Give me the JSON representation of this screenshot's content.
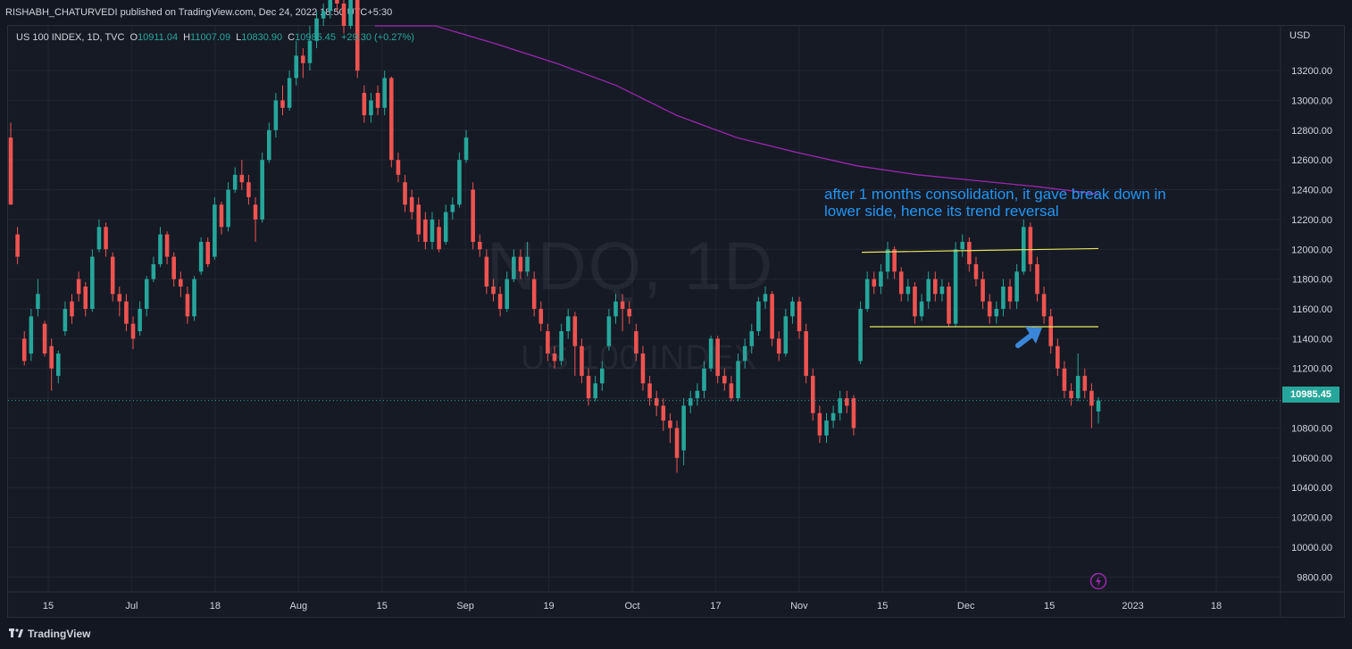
{
  "header": {
    "published_text": "RISHABH_CHATURVEDI published on TradingView.com, Dec 24, 2022 18:50 UTC+5:30"
  },
  "legend": {
    "symbol": "US 100 INDEX, 1D, TVC",
    "open_label": "O",
    "open": "10911.04",
    "high_label": "H",
    "high": "11007.09",
    "low_label": "L",
    "low": "10830.90",
    "close_label": "C",
    "close": "10985.45",
    "change": "+29.30 (+0.27%)"
  },
  "watermark": {
    "symbol": "NDQ, 1D",
    "name": "US 100 INDEX"
  },
  "annotation": {
    "text": "after 1 months consolidation, it gave break down in lower side, hence its trend reversal"
  },
  "price_axis": {
    "currency": "USD",
    "last_price": "10985.45"
  },
  "footer": {
    "brand": "TradingView"
  },
  "colors": {
    "up": "#26a69a",
    "down": "#ef5350",
    "ma": "#9c27b0",
    "level_line": "#e6e65c",
    "annotation": "#2196f3",
    "background": "#161a25"
  },
  "icons": [
    "arrow-icon",
    "flash-icon",
    "tradingview-logo-icon"
  ],
  "chart_data": {
    "type": "candlestick",
    "y_range": [
      9700,
      13500
    ],
    "y_ticks": [
      "13200.00",
      "13000.00",
      "12800.00",
      "12600.00",
      "12400.00",
      "12200.00",
      "12000.00",
      "11800.00",
      "11600.00",
      "11400.00",
      "11200.00",
      "11000.00",
      "10800.00",
      "10600.00",
      "10400.00",
      "10200.00",
      "10000.00",
      "9800.00"
    ],
    "x_ticks": [
      "15",
      "Jul",
      "18",
      "Aug",
      "15",
      "Sep",
      "19",
      "Oct",
      "17",
      "Nov",
      "15",
      "Dec",
      "15",
      "2023",
      "18"
    ],
    "resistance_line": [
      11980,
      12005
    ],
    "support_line": [
      11480,
      11480
    ],
    "moving_average": [
      13700,
      13520,
      13380,
      13250,
      13100,
      12900,
      12750,
      12650,
      12560,
      12500,
      12460,
      12420,
      12370
    ],
    "candles": [
      [
        12750,
        12300,
        12850,
        12300
      ],
      [
        12100,
        11950,
        12150,
        11900
      ],
      [
        11400,
        11250,
        11450,
        11220
      ],
      [
        11300,
        11550,
        11600,
        11250
      ],
      [
        11600,
        11700,
        11800,
        11550
      ],
      [
        11500,
        11300,
        11520,
        11280
      ],
      [
        11350,
        11200,
        11400,
        11050
      ],
      [
        11150,
        11300,
        11320,
        11100
      ],
      [
        11450,
        11600,
        11650,
        11420
      ],
      [
        11650,
        11550,
        11700,
        11500
      ],
      [
        11800,
        11700,
        11850,
        11650
      ],
      [
        11750,
        11600,
        11780,
        11550
      ],
      [
        11600,
        11950,
        12000,
        11580
      ],
      [
        12000,
        12150,
        12200,
        11980
      ],
      [
        12150,
        12000,
        12180,
        11950
      ],
      [
        11950,
        11700,
        11980,
        11650
      ],
      [
        11700,
        11650,
        11750,
        11550
      ],
      [
        11650,
        11500,
        11700,
        11450
      ],
      [
        11500,
        11400,
        11550,
        11330
      ],
      [
        11450,
        11600,
        11650,
        11420
      ],
      [
        11600,
        11800,
        11820,
        11550
      ],
      [
        11800,
        11900,
        11950,
        11780
      ],
      [
        11900,
        12100,
        12150,
        11880
      ],
      [
        12100,
        11950,
        12120,
        11900
      ],
      [
        11950,
        11800,
        11980,
        11750
      ],
      [
        11800,
        11750,
        11850,
        11680
      ],
      [
        11700,
        11550,
        11750,
        11500
      ],
      [
        11550,
        11800,
        11820,
        11520
      ],
      [
        11850,
        12050,
        12080,
        11830
      ],
      [
        12050,
        11900,
        12080,
        11880
      ],
      [
        11950,
        12300,
        12350,
        11930
      ],
      [
        12300,
        12150,
        12320,
        12100
      ],
      [
        12150,
        12400,
        12450,
        12120
      ],
      [
        12400,
        12500,
        12550,
        12380
      ],
      [
        12500,
        12450,
        12600,
        12400
      ],
      [
        12450,
        12350,
        12500,
        12300
      ],
      [
        12300,
        12200,
        12350,
        12050
      ],
      [
        12200,
        12600,
        12650,
        12180
      ],
      [
        12600,
        12800,
        12850,
        12580
      ],
      [
        12800,
        13000,
        13050,
        12750
      ],
      [
        13000,
        12950,
        13100,
        12900
      ],
      [
        12950,
        13150,
        13200,
        12930
      ],
      [
        13150,
        13300,
        13400,
        13100
      ],
      [
        13300,
        13250,
        13350,
        13150
      ],
      [
        13250,
        13400,
        13500,
        13200
      ],
      [
        13400,
        13550,
        13600,
        13350
      ],
      [
        13550,
        13600,
        13650,
        13500
      ],
      [
        13600,
        13700,
        13750,
        13550
      ],
      [
        13700,
        13650,
        13800,
        13600
      ],
      [
        13650,
        13500,
        13700,
        13450
      ],
      [
        13500,
        13750,
        13800,
        13480
      ],
      [
        13750,
        13200,
        13800,
        13150
      ],
      [
        13050,
        12900,
        13100,
        12850
      ],
      [
        12900,
        13000,
        13050,
        12850
      ],
      [
        13050,
        12950,
        13100,
        12900
      ],
      [
        12950,
        13150,
        13200,
        12900
      ],
      [
        13150,
        12600,
        13160,
        12550
      ],
      [
        12600,
        12500,
        12650,
        12450
      ],
      [
        12450,
        12300,
        12500,
        12250
      ],
      [
        12350,
        12250,
        12400,
        12200
      ],
      [
        12300,
        12100,
        12350,
        12050
      ],
      [
        12200,
        12050,
        12250,
        12000
      ],
      [
        12050,
        12200,
        12250,
        12000
      ],
      [
        12150,
        12000,
        12200,
        11980
      ],
      [
        12050,
        12250,
        12300,
        12030
      ],
      [
        12250,
        12300,
        12350,
        12200
      ],
      [
        12300,
        12600,
        12650,
        12280
      ],
      [
        12600,
        12750,
        12800,
        12580
      ],
      [
        12400,
        12050,
        12450,
        12000
      ],
      [
        12050,
        12000,
        12100,
        11950
      ],
      [
        11950,
        11750,
        12000,
        11700
      ],
      [
        11750,
        11700,
        11800,
        11650
      ],
      [
        11700,
        11600,
        11750,
        11550
      ],
      [
        11600,
        11800,
        11850,
        11580
      ],
      [
        11800,
        11950,
        12000,
        11780
      ],
      [
        11950,
        11850,
        12000,
        11800
      ],
      [
        11850,
        11950,
        12050,
        11820
      ],
      [
        11800,
        11600,
        11850,
        11550
      ],
      [
        11600,
        11500,
        11650,
        11450
      ],
      [
        11450,
        11300,
        11500,
        11250
      ],
      [
        11300,
        11250,
        11350,
        11200
      ],
      [
        11250,
        11450,
        11500,
        11220
      ],
      [
        11450,
        11550,
        11600,
        11400
      ],
      [
        11550,
        11350,
        11580,
        11150
      ],
      [
        11350,
        11150,
        11400,
        11100
      ],
      [
        11150,
        11000,
        11200,
        10950
      ],
      [
        11000,
        11100,
        11150,
        10980
      ],
      [
        11100,
        11200,
        11250,
        11050
      ],
      [
        11350,
        11550,
        11600,
        11320
      ],
      [
        11550,
        11650,
        11700,
        11500
      ],
      [
        11650,
        11600,
        11700,
        11450
      ],
      [
        11600,
        11550,
        11650,
        11500
      ],
      [
        11450,
        11300,
        11500,
        11250
      ],
      [
        11300,
        11100,
        11350,
        11050
      ],
      [
        11100,
        11000,
        11150,
        10950
      ],
      [
        11000,
        10950,
        11050,
        10880
      ],
      [
        10950,
        10850,
        11000,
        10780
      ],
      [
        10850,
        10800,
        10900,
        10700
      ],
      [
        10800,
        10600,
        10850,
        10500
      ],
      [
        10650,
        10950,
        11000,
        10550
      ],
      [
        10950,
        11000,
        11050,
        10900
      ],
      [
        11000,
        11050,
        11100,
        10950
      ],
      [
        11050,
        11200,
        11250,
        11000
      ],
      [
        11200,
        11400,
        11420,
        11180
      ],
      [
        11400,
        11150,
        11420,
        11100
      ],
      [
        11150,
        11100,
        11200,
        11050
      ],
      [
        11100,
        11000,
        11150,
        10980
      ],
      [
        11000,
        11250,
        11300,
        10980
      ],
      [
        11250,
        11350,
        11400,
        11200
      ],
      [
        11350,
        11450,
        11500,
        11300
      ],
      [
        11450,
        11650,
        11680,
        11420
      ],
      [
        11650,
        11700,
        11750,
        11600
      ],
      [
        11700,
        11400,
        11720,
        11350
      ],
      [
        11400,
        11300,
        11450,
        11250
      ],
      [
        11300,
        11550,
        11600,
        11280
      ],
      [
        11550,
        11650,
        11680,
        11500
      ],
      [
        11650,
        11450,
        11680,
        11400
      ],
      [
        11450,
        11150,
        11500,
        11100
      ],
      [
        11150,
        10900,
        11200,
        10850
      ],
      [
        10900,
        10750,
        10950,
        10700
      ],
      [
        10750,
        10850,
        10900,
        10700
      ],
      [
        10850,
        10900,
        10950,
        10800
      ],
      [
        10900,
        11000,
        11050,
        10850
      ],
      [
        11000,
        10950,
        11050,
        10900
      ],
      [
        11000,
        10800,
        11020,
        10750
      ],
      [
        11250,
        11600,
        11650,
        11230
      ],
      [
        11600,
        11800,
        11850,
        11580
      ],
      [
        11800,
        11750,
        11850,
        11700
      ],
      [
        11750,
        11850,
        11900,
        11700
      ],
      [
        11850,
        12000,
        12050,
        11800
      ],
      [
        12000,
        11850,
        12020,
        11800
      ],
      [
        11850,
        11700,
        11880,
        11650
      ],
      [
        11700,
        11750,
        11800,
        11650
      ],
      [
        11750,
        11550,
        11780,
        11500
      ],
      [
        11550,
        11650,
        11700,
        11520
      ],
      [
        11650,
        11800,
        11850,
        11600
      ],
      [
        11800,
        11700,
        11850,
        11650
      ],
      [
        11700,
        11750,
        11800,
        11650
      ],
      [
        11750,
        11500,
        11780,
        11480
      ],
      [
        11500,
        12000,
        12050,
        11480
      ],
      [
        12000,
        12050,
        12100,
        11950
      ],
      [
        12050,
        11900,
        12080,
        11850
      ],
      [
        11900,
        11800,
        11950,
        11750
      ],
      [
        11800,
        11650,
        11850,
        11600
      ],
      [
        11650,
        11550,
        11700,
        11500
      ],
      [
        11550,
        11600,
        11650,
        11500
      ],
      [
        11600,
        11750,
        11800,
        11550
      ],
      [
        11750,
        11650,
        11800,
        11600
      ],
      [
        11650,
        11850,
        11900,
        11600
      ],
      [
        11850,
        12150,
        12200,
        11830
      ],
      [
        12150,
        11900,
        12180,
        11850
      ],
      [
        11900,
        11700,
        11950,
        11650
      ],
      [
        11700,
        11550,
        11750,
        11500
      ],
      [
        11550,
        11350,
        11600,
        11300
      ],
      [
        11350,
        11200,
        11400,
        11150
      ],
      [
        11200,
        11050,
        11250,
        11000
      ],
      [
        11050,
        11000,
        11100,
        10950
      ],
      [
        11000,
        11150,
        11300,
        10980
      ],
      [
        11150,
        11050,
        11200,
        11000
      ],
      [
        11050,
        10950,
        11100,
        10800
      ],
      [
        10911,
        10985,
        11007,
        10830
      ]
    ]
  }
}
